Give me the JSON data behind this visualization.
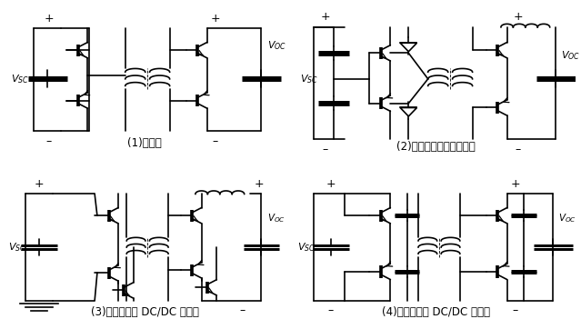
{
  "background_color": "#ffffff",
  "line_color": "#000000",
  "lw": 1.2,
  "labels": {
    "top_left": "(1)全桥式",
    "top_right": "(2)原边半桥式，次边推免",
    "bottom_left": "(3)双推免双向 DC/DC 转换器",
    "bottom_right": "(4)双半桥双向 DC/DC 转换器"
  }
}
